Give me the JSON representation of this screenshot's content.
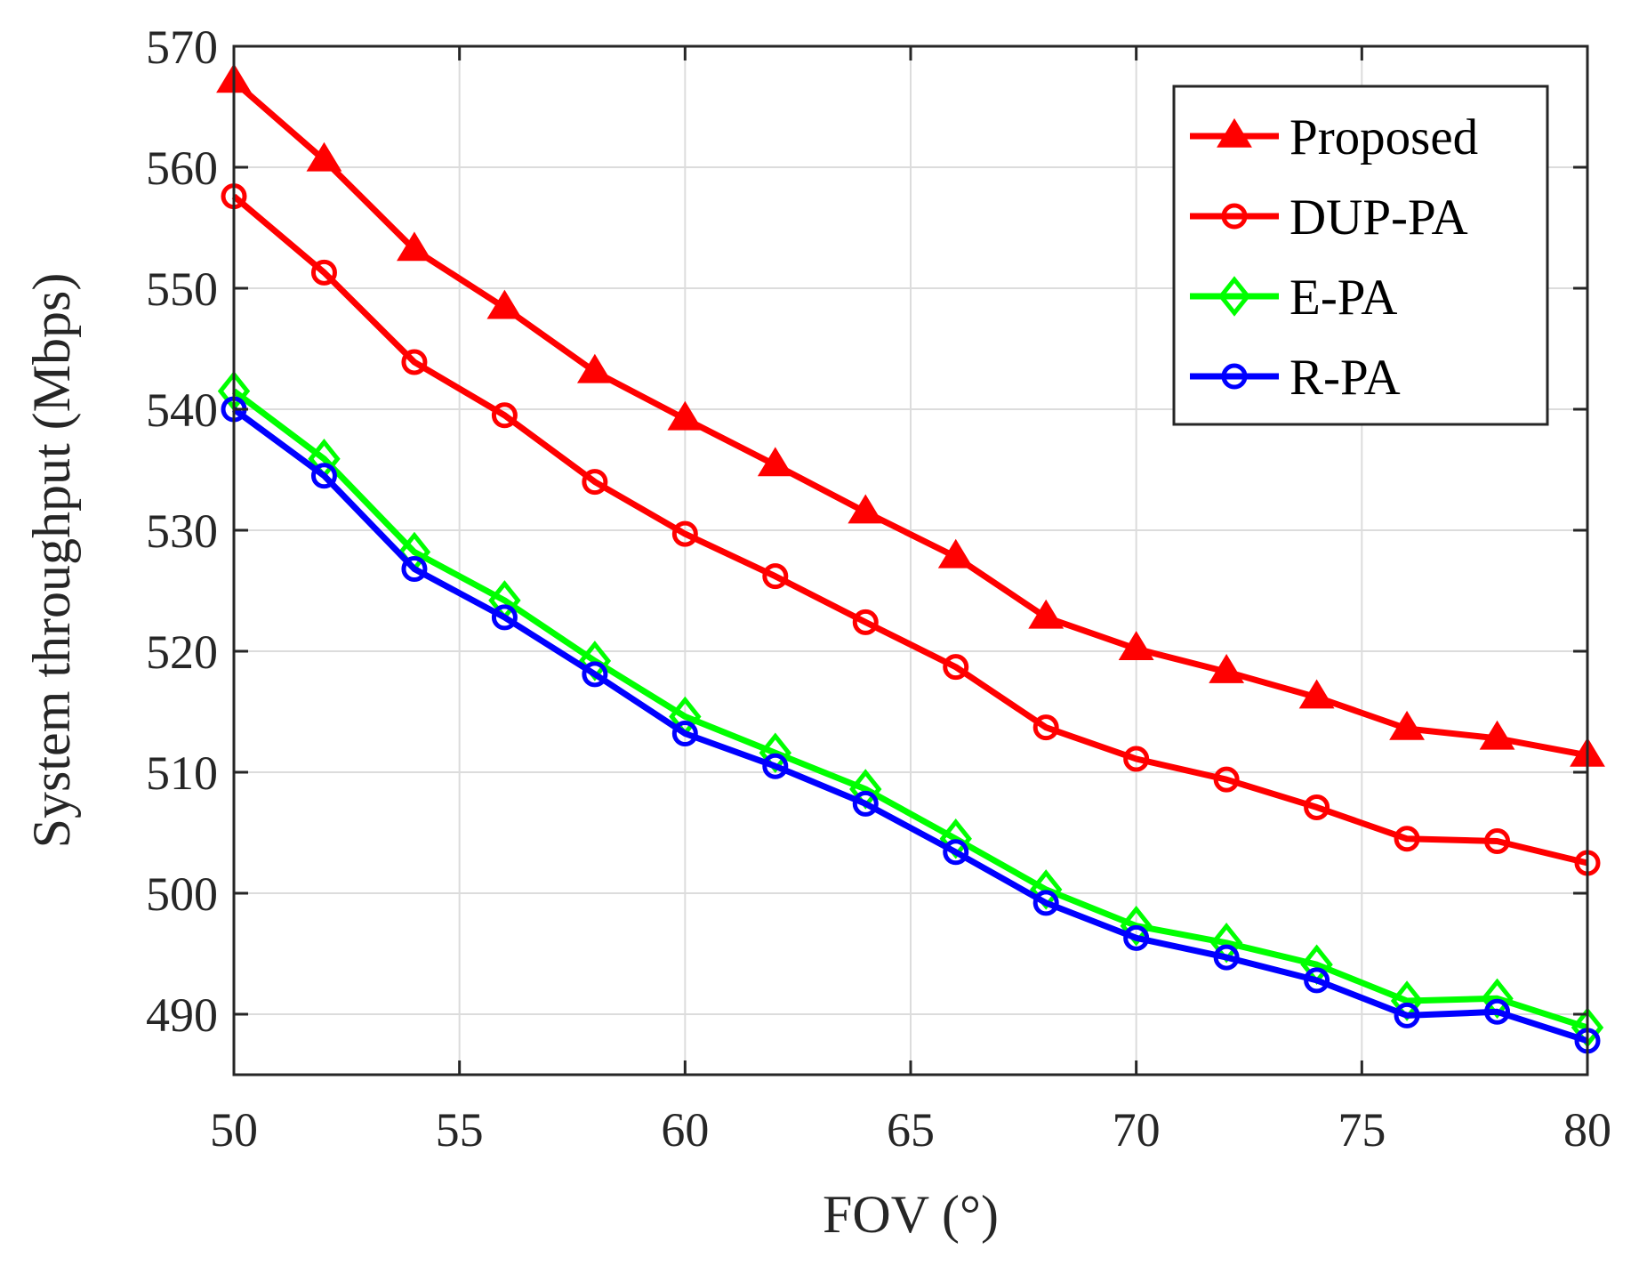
{
  "chart_data": {
    "type": "line",
    "title": "",
    "xlabel": "FOV (°)",
    "ylabel": "System throughput (Mbps)",
    "xlim": [
      50,
      80
    ],
    "ylim": [
      485,
      570
    ],
    "xticks": [
      50,
      55,
      60,
      65,
      70,
      75,
      80
    ],
    "yticks": [
      490,
      500,
      510,
      520,
      530,
      540,
      550,
      560,
      570
    ],
    "grid": true,
    "legend_position": "top-right",
    "x": [
      50,
      52,
      54,
      56,
      58,
      60,
      62,
      64,
      66,
      68,
      70,
      72,
      74,
      76,
      78,
      80
    ],
    "series": [
      {
        "name": "Proposed",
        "color": "#ff0000",
        "marker": "triangle",
        "values": [
          567.1,
          560.6,
          553.2,
          548.4,
          543.1,
          539.2,
          535.4,
          531.5,
          527.8,
          522.8,
          520.2,
          518.3,
          516.2,
          513.6,
          512.8,
          511.4
        ]
      },
      {
        "name": "DUP-PA",
        "color": "#ff0000",
        "marker": "circle",
        "values": [
          557.6,
          551.3,
          543.9,
          539.5,
          534.0,
          529.7,
          526.2,
          522.4,
          518.7,
          513.7,
          511.1,
          509.4,
          507.1,
          504.5,
          504.3,
          502.5
        ]
      },
      {
        "name": "E-PA",
        "color": "#00ff00",
        "marker": "diamond",
        "values": [
          541.5,
          535.9,
          528.2,
          524.2,
          519.2,
          514.6,
          511.6,
          508.6,
          504.5,
          500.3,
          497.3,
          495.9,
          494.1,
          491.1,
          491.3,
          488.9
        ]
      },
      {
        "name": "R-PA",
        "color": "#0000ff",
        "marker": "circle",
        "values": [
          540.0,
          534.5,
          526.8,
          522.8,
          518.1,
          513.2,
          510.5,
          507.4,
          503.4,
          499.2,
          496.3,
          494.7,
          492.8,
          489.9,
          490.2,
          487.8
        ]
      }
    ]
  }
}
